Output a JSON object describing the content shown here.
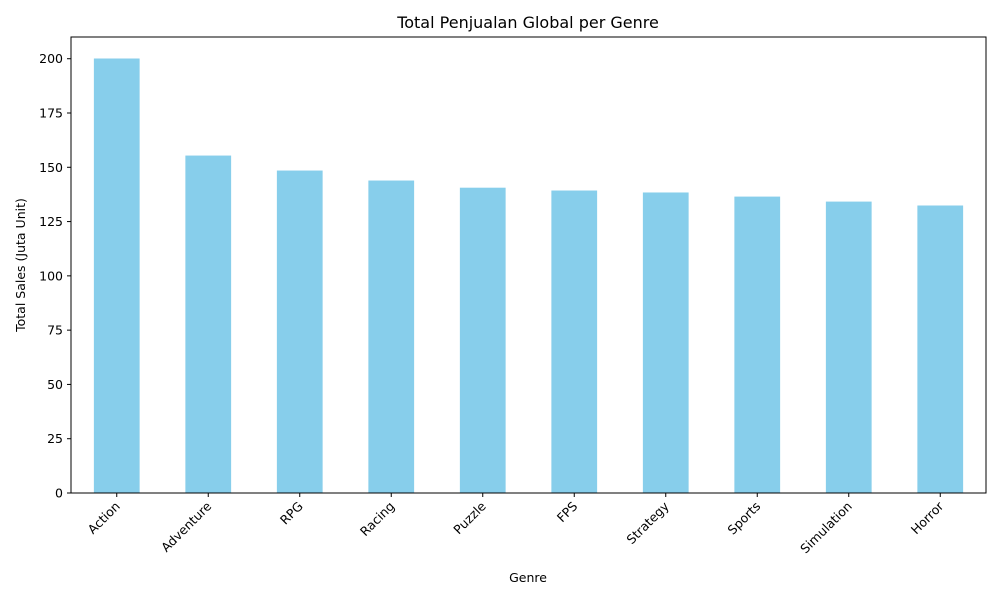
{
  "chart_data": {
    "type": "bar",
    "title": "Total Penjualan Global per Genre",
    "xlabel": "Genre",
    "ylabel": "Total Sales (Juta Unit)",
    "categories": [
      "Action",
      "Adventure",
      "RPG",
      "Racing",
      "Puzzle",
      "FPS",
      "Strategy",
      "Sports",
      "Simulation",
      "Horror"
    ],
    "values": [
      200.1,
      155.4,
      148.5,
      143.9,
      140.6,
      139.3,
      138.4,
      136.5,
      134.2,
      132.4
    ],
    "ylim": [
      0,
      210
    ],
    "yticks": [
      0,
      25,
      50,
      75,
      100,
      125,
      150,
      175,
      200
    ],
    "bar_color": "#87ceeb",
    "grid": false,
    "legend": "none"
  }
}
